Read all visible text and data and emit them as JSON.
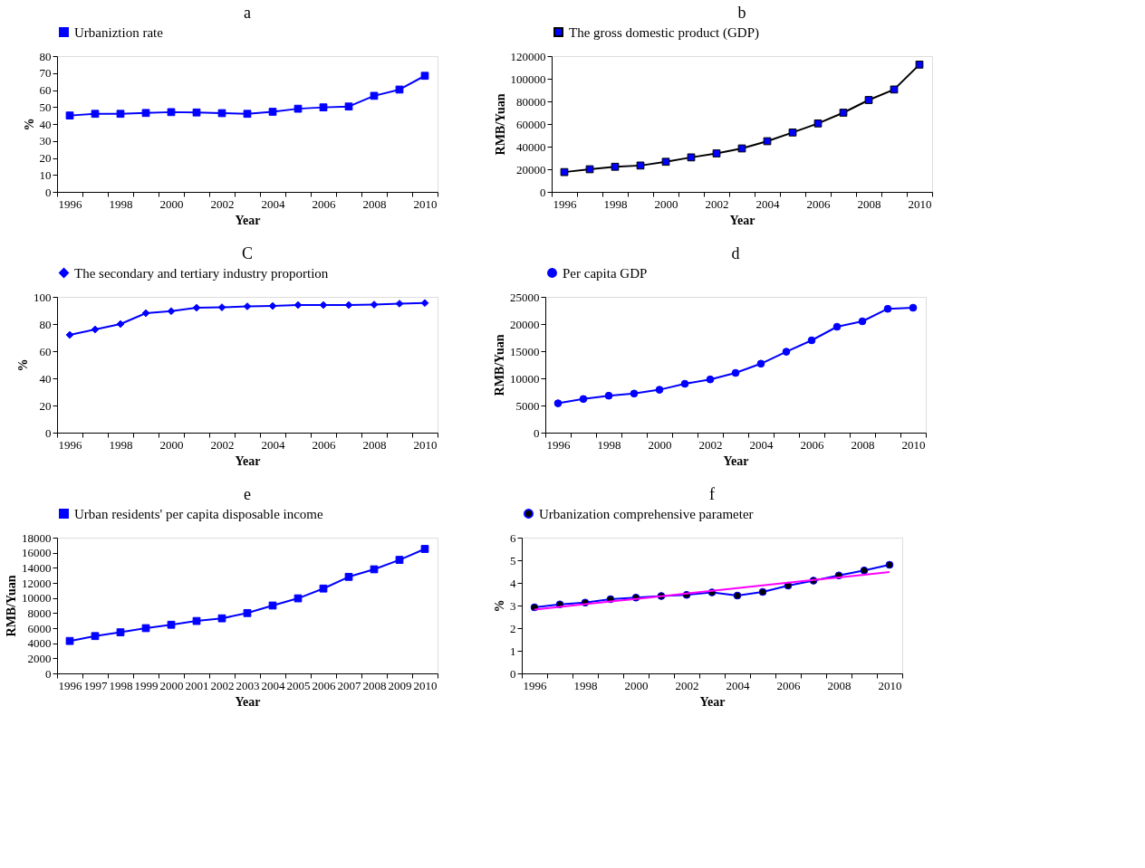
{
  "chart_data": [
    {
      "type": "line",
      "title": "a",
      "xlabel": "Year",
      "ylabel": "%",
      "categories": [
        "1996",
        null,
        "1998",
        null,
        "2000",
        null,
        "2002",
        null,
        "2004",
        null,
        "2006",
        null,
        "2008",
        null,
        "2010"
      ],
      "ylim": [
        0,
        80
      ],
      "yticks": [
        0,
        10,
        20,
        30,
        40,
        50,
        60,
        70,
        80
      ],
      "grid": false,
      "legend": "top",
      "marker": "square",
      "series": [
        {
          "name": "Urbaniztion rate",
          "color": "#0000ff",
          "values": [
            45,
            46,
            46,
            46.5,
            47,
            46.8,
            46.4,
            46,
            47.2,
            49,
            49.8,
            50.3,
            56.6,
            60.3,
            68.4
          ]
        }
      ]
    },
    {
      "type": "line",
      "title": "b",
      "xlabel": "Year",
      "ylabel": "RMB/Yuan",
      "categories": [
        "1996",
        null,
        "1998",
        null,
        "2000",
        null,
        "2002",
        null,
        "2004",
        null,
        "2006",
        null,
        "2008",
        null,
        "2010"
      ],
      "ylim": [
        0,
        120000
      ],
      "yticks": [
        0,
        20000,
        40000,
        60000,
        80000,
        100000,
        120000
      ],
      "grid": false,
      "legend": "top",
      "marker": "square",
      "series": [
        {
          "name": "The gross domestic product (GDP)",
          "color": "#000000",
          "colors": [
            "#0000ff",
            "#0000ff",
            "#0000ff",
            "#0000ff",
            "#0000ff",
            "#0000ff",
            "#0000ff",
            "#0000ff",
            "#0000ff",
            "#0000ff",
            "#0000ff",
            "#0000ff",
            "#0000ff",
            "#0000ff",
            "#0000ff"
          ],
          "values": [
            17500,
            20000,
            22200,
            23300,
            26600,
            30500,
            34000,
            38400,
            44800,
            52500,
            60500,
            70000,
            81200,
            90500,
            112500
          ]
        }
      ]
    },
    {
      "type": "line",
      "title": "C",
      "xlabel": "Year",
      "ylabel": "%",
      "categories": [
        "1996",
        null,
        "1998",
        null,
        "2000",
        null,
        "2002",
        null,
        "2004",
        null,
        "2006",
        null,
        "2008",
        null,
        "2010"
      ],
      "ylim": [
        0,
        100
      ],
      "yticks": [
        0,
        20,
        40,
        60,
        80,
        100
      ],
      "grid": false,
      "legend": "top",
      "marker": "diamond",
      "series": [
        {
          "name": "The secondary and tertiary industry proportion",
          "color": "#0000ff",
          "values": [
            72,
            76,
            80,
            88,
            89.5,
            92,
            92.3,
            93,
            93.3,
            94,
            94,
            94,
            94.3,
            95,
            95.5
          ]
        }
      ]
    },
    {
      "type": "line",
      "title": "d",
      "xlabel": "Year",
      "ylabel": "RMB/Yuan",
      "categories": [
        "1996",
        null,
        "1998",
        null,
        "2000",
        null,
        "2002",
        null,
        "2004",
        null,
        "2006",
        null,
        "2008",
        null,
        "2010"
      ],
      "ylim": [
        0,
        25000
      ],
      "yticks": [
        0,
        5000,
        10000,
        15000,
        20000,
        25000
      ],
      "grid": false,
      "legend": "top",
      "marker": "circle",
      "series": [
        {
          "name": "Per capita GDP",
          "color": "#0000ff",
          "values": [
            5400,
            6200,
            6800,
            7200,
            7900,
            9000,
            9800,
            11000,
            12700,
            14900,
            17000,
            19500,
            20500,
            22800,
            23000
          ]
        }
      ]
    },
    {
      "type": "line",
      "title": "e",
      "xlabel": "Year",
      "ylabel": "RMB/Yuan",
      "categories": [
        "1996",
        "1997",
        "1998",
        "1999",
        "2000",
        "2001",
        "2002",
        "2003",
        "2004",
        "2005",
        "2006",
        "2007",
        "2008",
        "2009",
        "2010"
      ],
      "ylim": [
        0,
        18000
      ],
      "yticks": [
        0,
        2000,
        4000,
        6000,
        8000,
        10000,
        12000,
        14000,
        16000,
        18000
      ],
      "grid": false,
      "legend": "top",
      "marker": "square",
      "series": [
        {
          "name": "Urban residents' per capita disposable income",
          "color": "#0000ff",
          "values": [
            4300,
            4950,
            5450,
            6000,
            6450,
            6950,
            7300,
            8000,
            9000,
            9950,
            11250,
            12800,
            13800,
            15050,
            16500
          ]
        }
      ]
    },
    {
      "type": "line",
      "title": "f",
      "xlabel": "Year",
      "ylabel": "%",
      "categories": [
        "1996",
        null,
        "1998",
        null,
        "2000",
        null,
        "2002",
        null,
        "2004",
        null,
        "2006",
        null,
        "2008",
        null,
        "2010"
      ],
      "ylim": [
        0,
        6
      ],
      "yticks": [
        0,
        1,
        2,
        3,
        4,
        5,
        6
      ],
      "grid": false,
      "legend": "top",
      "marker": "circle",
      "series": [
        {
          "name": "Urbanization comprehensive parameter",
          "color": "#0000ff",
          "colors": [
            "#000000",
            "#000000",
            "#000000",
            "#000000",
            "#000000",
            "#000000",
            "#000000",
            "#000000",
            "#000000",
            "#000000",
            "#000000",
            "#000000",
            "#000000",
            "#000000",
            "#000000"
          ],
          "values": [
            2.92,
            3.05,
            3.13,
            3.28,
            3.35,
            3.42,
            3.47,
            3.58,
            3.44,
            3.6,
            3.88,
            4.1,
            4.33,
            4.55,
            4.8
          ]
        },
        {
          "type": "line",
          "marker": "none",
          "color": "#ff00ff",
          "values": [
            2.82,
            2.94,
            3.06,
            3.18,
            3.29,
            3.41,
            3.53,
            3.65,
            3.77,
            3.89,
            4.01,
            4.13,
            4.24,
            4.36,
            4.48
          ]
        }
      ]
    }
  ]
}
